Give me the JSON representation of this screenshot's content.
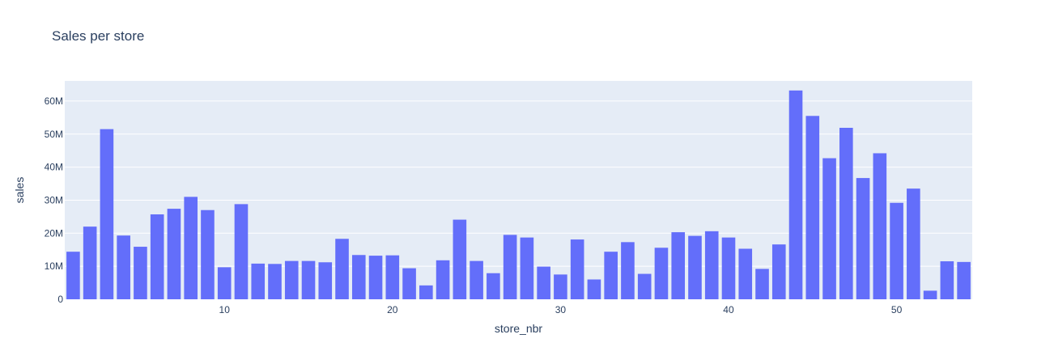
{
  "chart_data": {
    "type": "bar",
    "title": "Sales per store",
    "xlabel": "store_nbr",
    "ylabel": "sales",
    "x": [
      1,
      2,
      3,
      4,
      5,
      6,
      7,
      8,
      9,
      10,
      11,
      12,
      13,
      14,
      15,
      16,
      17,
      18,
      19,
      20,
      21,
      22,
      23,
      24,
      25,
      26,
      27,
      28,
      29,
      30,
      31,
      32,
      33,
      34,
      35,
      36,
      37,
      38,
      39,
      40,
      41,
      42,
      43,
      44,
      45,
      46,
      47,
      48,
      49,
      50,
      51,
      52,
      53,
      54
    ],
    "values": [
      14.4,
      22.0,
      51.5,
      19.3,
      15.9,
      25.7,
      27.4,
      31.0,
      27.0,
      9.7,
      28.8,
      10.8,
      10.7,
      11.6,
      11.6,
      11.2,
      18.3,
      13.4,
      13.2,
      13.3,
      9.4,
      4.2,
      11.8,
      24.1,
      11.6,
      7.9,
      19.5,
      18.7,
      9.9,
      7.5,
      18.1,
      6.0,
      14.4,
      17.3,
      7.7,
      15.6,
      20.3,
      19.2,
      20.6,
      18.7,
      15.3,
      9.2,
      16.6,
      63.2,
      55.5,
      42.7,
      51.9,
      36.7,
      44.2,
      29.2,
      33.5,
      2.6,
      11.5,
      11.3
    ],
    "value_unit": "M",
    "xlim": [
      0.5,
      54.5
    ],
    "ylim": [
      0,
      66.1
    ],
    "x_ticks": [
      10,
      20,
      30,
      40,
      50
    ],
    "x_tick_labels": [
      "10",
      "20",
      "30",
      "40",
      "50"
    ],
    "y_ticks": [
      0,
      10,
      20,
      30,
      40,
      50,
      60
    ],
    "y_tick_labels": [
      "0",
      "10M",
      "20M",
      "30M",
      "40M",
      "50M",
      "60M"
    ],
    "grid": true,
    "colors": {
      "bar": "#636efa",
      "plot_background": "#e5ecf6",
      "gridline": "#ffffff",
      "text": "#2a3f5f"
    }
  }
}
